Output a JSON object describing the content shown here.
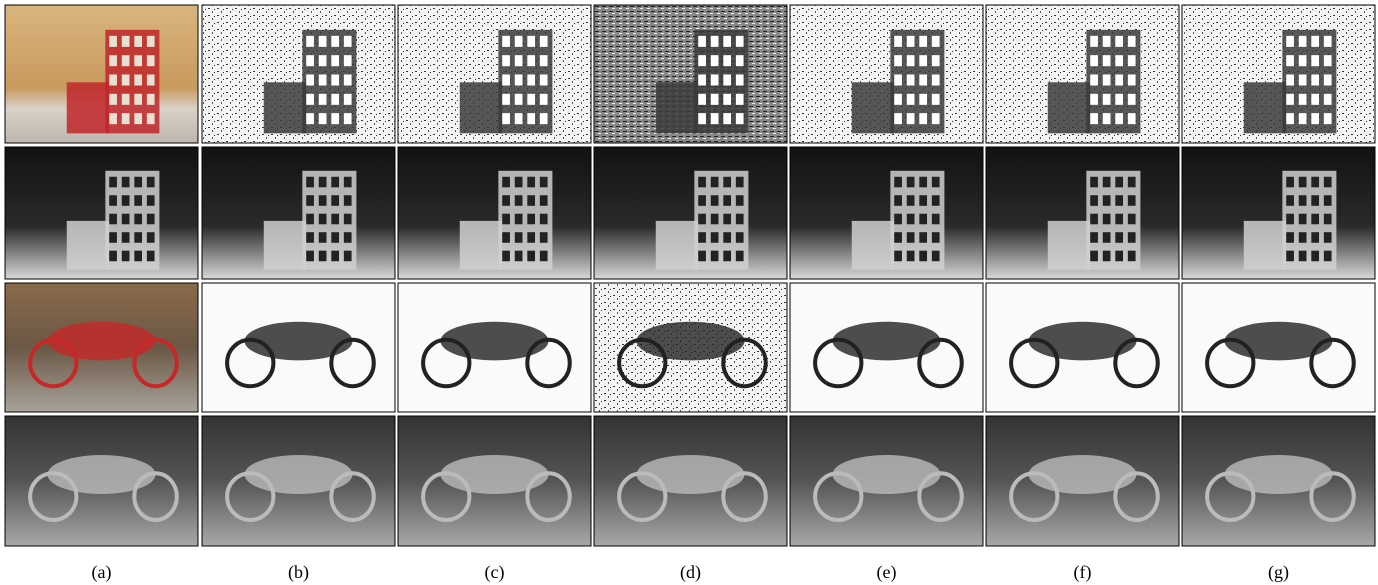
{
  "figure": {
    "labels": [
      "(a)",
      "(b)",
      "(c)",
      "(d)",
      "(e)",
      "(f)",
      "(g)"
    ]
  }
}
